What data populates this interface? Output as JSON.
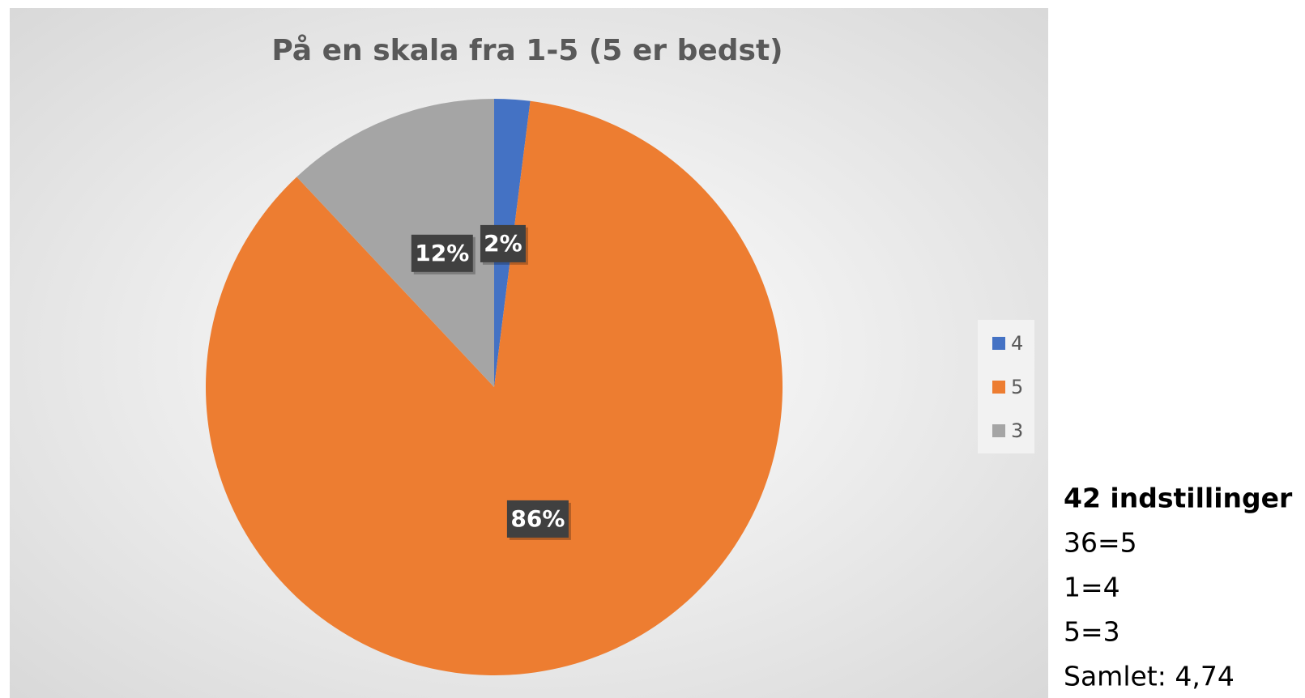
{
  "chart_data": {
    "type": "pie",
    "title": "På en skala fra 1-5 (5 er bedst)",
    "categories": [
      "4",
      "5",
      "3"
    ],
    "values": [
      2,
      86,
      12
    ],
    "value_labels": [
      "2%",
      "86%",
      "12%"
    ],
    "colors": [
      "#4472c4",
      "#ed7d31",
      "#a5a5a5"
    ],
    "legend": "right",
    "annotations": [
      "42 indstillinger",
      "36=5",
      "1=4",
      "5=3",
      "Samlet: 4,74"
    ]
  }
}
